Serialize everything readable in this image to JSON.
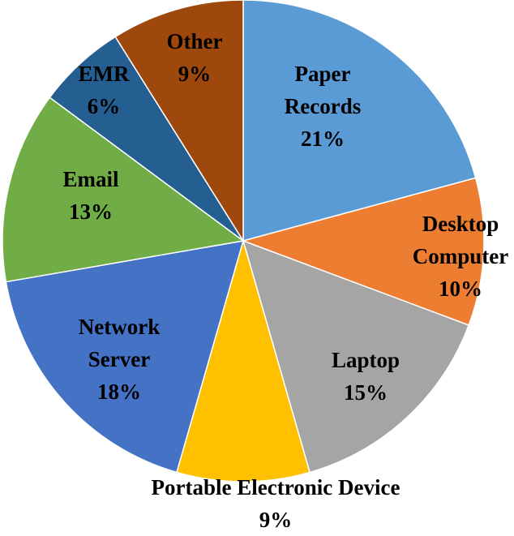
{
  "chart_data": {
    "type": "pie",
    "title": "",
    "slices": [
      {
        "label_lines": [
          "Paper",
          "Records"
        ],
        "percent_label": "21%",
        "value": 21,
        "color": "#5b9bd5"
      },
      {
        "label_lines": [
          "Desktop",
          "Computer"
        ],
        "percent_label": "10%",
        "value": 10,
        "color": "#ed7d31"
      },
      {
        "label_lines": [
          "Laptop"
        ],
        "percent_label": "15%",
        "value": 15,
        "color": "#a5a5a5"
      },
      {
        "label_lines": [
          "Portable Electronic Device"
        ],
        "percent_label": "9%",
        "value": 9,
        "color": "#ffc000"
      },
      {
        "label_lines": [
          "Network",
          "Server"
        ],
        "percent_label": "18%",
        "value": 18,
        "color": "#4472c4"
      },
      {
        "label_lines": [
          "Email"
        ],
        "percent_label": "13%",
        "value": 13,
        "color": "#70ad47"
      },
      {
        "label_lines": [
          "EMR"
        ],
        "percent_label": "6%",
        "value": 6,
        "color": "#255e91"
      },
      {
        "label_lines": [
          "Other"
        ],
        "percent_label": "9%",
        "value": 9,
        "color": "#9e480e"
      }
    ],
    "start_angle": "12 o'clock",
    "direction": "clockwise",
    "legend": "none"
  }
}
